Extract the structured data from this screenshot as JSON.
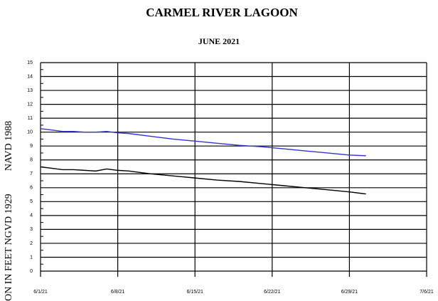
{
  "chart_data": {
    "type": "line",
    "title": "CARMEL RIVER LAGOON",
    "subtitle": "JUNE 2021",
    "y_label": "ON  IN  FEET  NGVD 1929",
    "y_label2": "NAVD 1988",
    "y_label2_color": "#3535cc",
    "x": [
      0,
      1,
      2,
      3,
      4,
      5,
      6,
      7,
      8,
      10,
      12,
      14,
      16,
      18,
      20,
      22,
      24,
      26,
      28,
      29.5
    ],
    "series": [
      {
        "color": "#3535cc",
        "values": [
          10.25,
          10.15,
          10.05,
          10.05,
          10.0,
          10.0,
          10.05,
          9.95,
          9.9,
          9.7,
          9.5,
          9.35,
          9.2,
          9.05,
          8.95,
          8.8,
          8.65,
          8.5,
          8.35,
          8.3
        ]
      },
      {
        "color": "#000000",
        "values": [
          7.5,
          7.4,
          7.3,
          7.3,
          7.25,
          7.2,
          7.35,
          7.25,
          7.2,
          7.0,
          6.85,
          6.7,
          6.55,
          6.45,
          6.3,
          6.15,
          6.0,
          5.85,
          5.7,
          5.55
        ]
      }
    ],
    "xlim": [
      0,
      35
    ],
    "xticks": [
      {
        "value": 0,
        "label": "6/1/21"
      },
      {
        "value": 7,
        "label": "6/8/21"
      },
      {
        "value": 14,
        "label": "6/15/21"
      },
      {
        "value": 21,
        "label": "6/22/21"
      },
      {
        "value": 28,
        "label": "6/29/21"
      },
      {
        "value": 35,
        "label": "7/6/21"
      }
    ],
    "ylim": [
      0,
      15
    ],
    "yticks": [
      0,
      1,
      2,
      3,
      4,
      5,
      6,
      7,
      8,
      9,
      10,
      11,
      12,
      13,
      14,
      15
    ],
    "grid": true
  }
}
